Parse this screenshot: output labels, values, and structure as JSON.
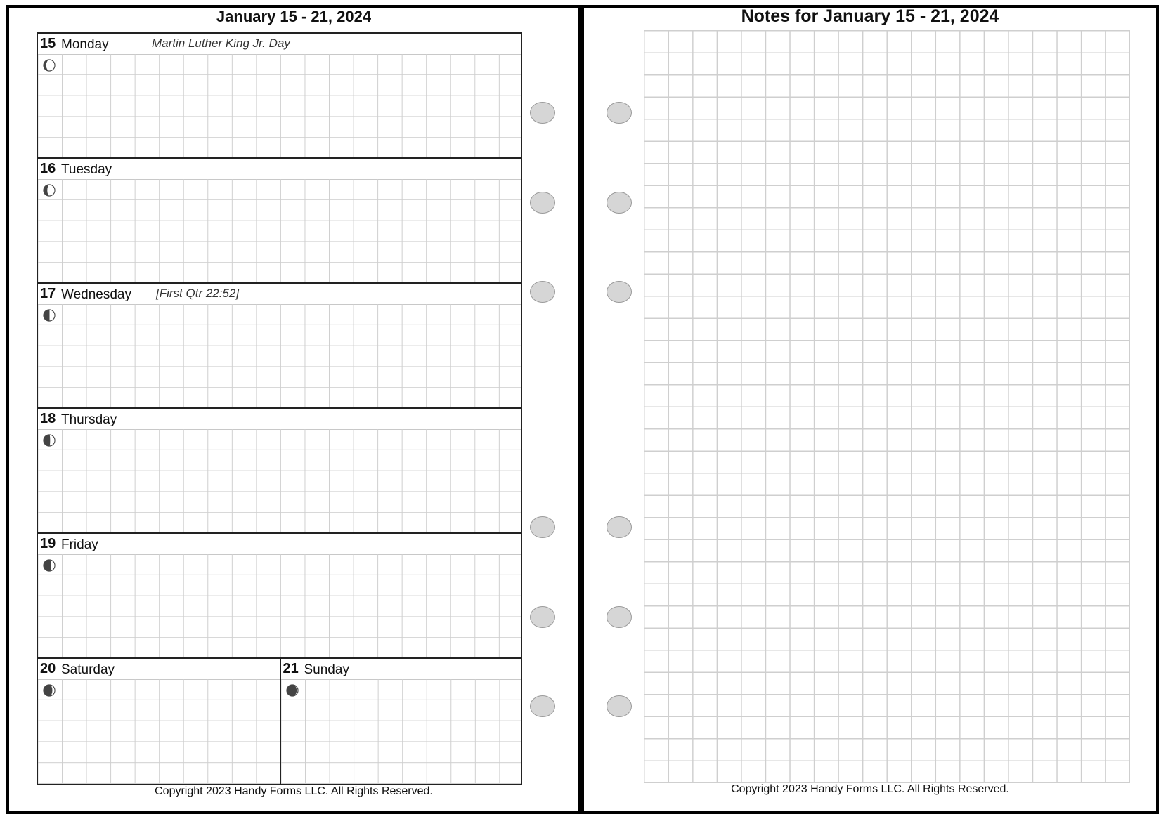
{
  "left_page": {
    "title": "January 15 - 21, 2024",
    "days": [
      {
        "num": "15",
        "name": "Monday",
        "note": "Martin Luther King Jr. Day",
        "moon_illumination": 0.2
      },
      {
        "num": "16",
        "name": "Tuesday",
        "note": "",
        "moon_illumination": 0.3
      },
      {
        "num": "17",
        "name": "Wednesday",
        "note": "[First Qtr 22:52]",
        "moon_illumination": 0.5
      },
      {
        "num": "18",
        "name": "Thursday",
        "note": "",
        "moon_illumination": 0.55
      },
      {
        "num": "19",
        "name": "Friday",
        "note": "",
        "moon_illumination": 0.65
      },
      {
        "num": "20",
        "name": "Saturday",
        "note": "",
        "moon_illumination": 0.75
      },
      {
        "num": "21",
        "name": "Sunday",
        "note": "",
        "moon_illumination": 0.85
      }
    ],
    "copyright": "Copyright 2023 Handy Forms LLC. All Rights Reserved."
  },
  "right_page": {
    "title": "Notes for January 15 - 21, 2024",
    "copyright": "Copyright 2023 Handy Forms LLC. All Rights Reserved."
  },
  "colors": {
    "grid": "#cfcfcf",
    "hole": "#d6d6d6",
    "border": "#000000"
  }
}
